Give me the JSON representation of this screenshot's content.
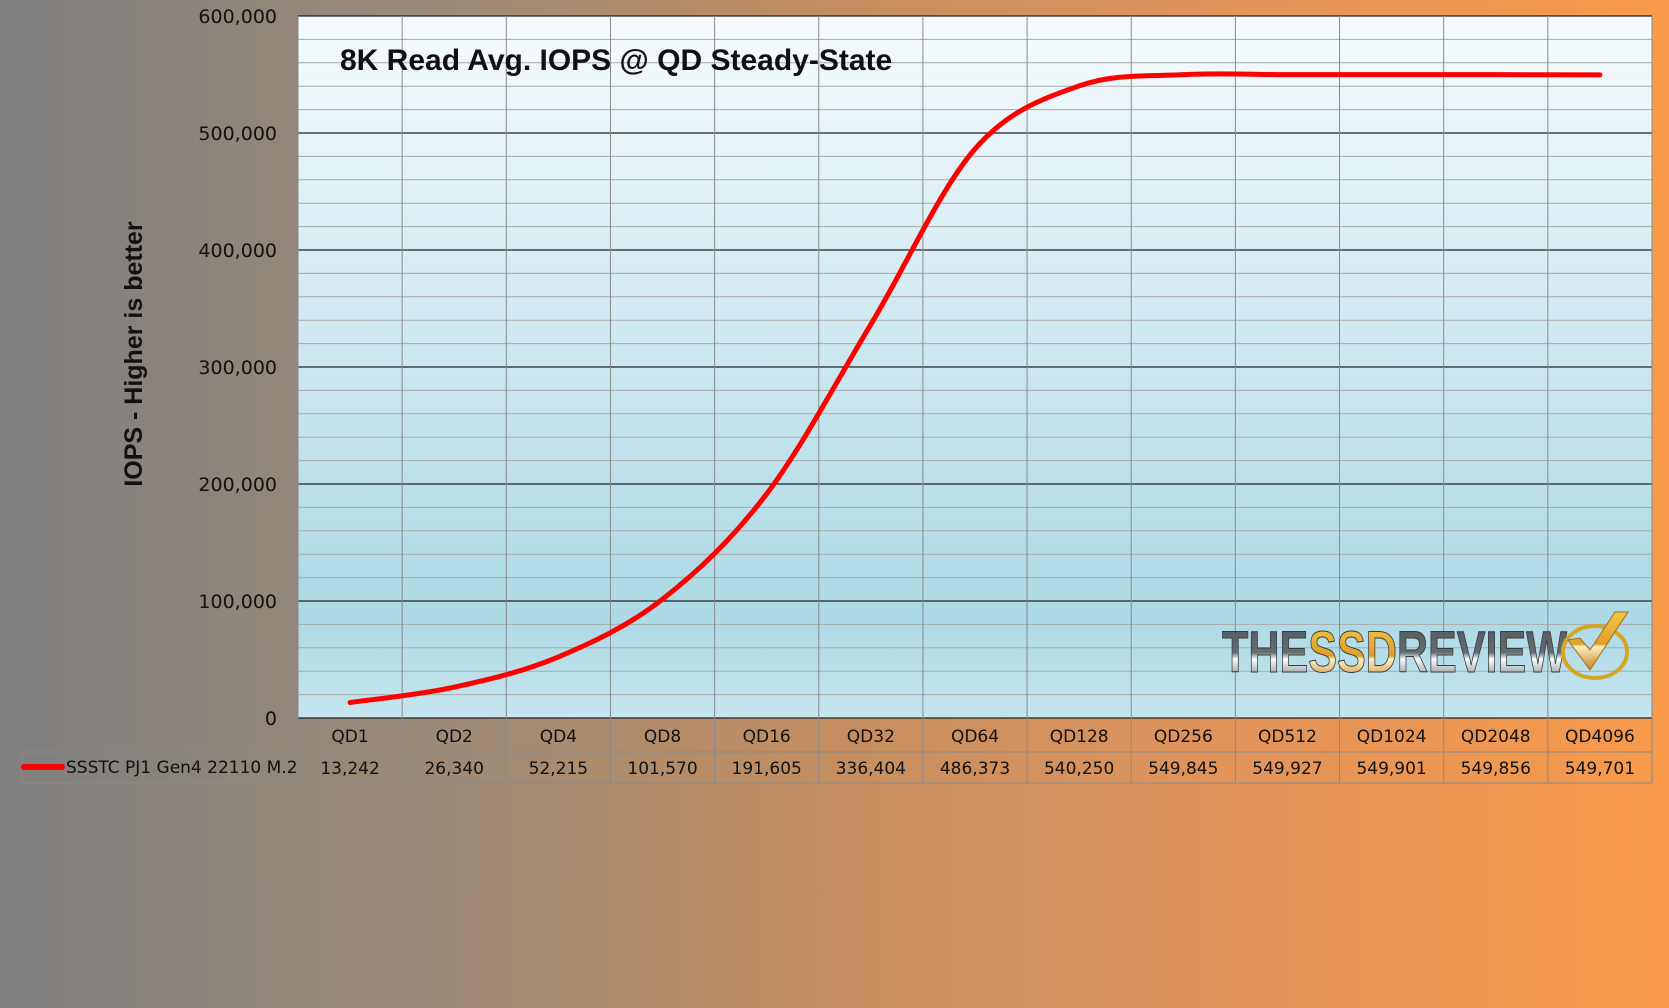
{
  "chart_data": {
    "type": "line",
    "title": "8K Read Avg. IOPS @ QD Steady-State",
    "ylabel": "IOPS - Higher is better",
    "xlabel": "",
    "ylim": [
      0,
      600000
    ],
    "yticks": [
      0,
      100000,
      200000,
      300000,
      400000,
      500000,
      600000
    ],
    "ytick_labels": [
      "0",
      "100,000",
      "200,000",
      "300,000",
      "400,000",
      "500,000",
      "600,000"
    ],
    "categories": [
      "QD1",
      "QD2",
      "QD4",
      "QD8",
      "QD16",
      "QD32",
      "QD64",
      "QD128",
      "QD256",
      "QD512",
      "QD1024",
      "QD2048",
      "QD4096"
    ],
    "series": [
      {
        "name": "SSSTC PJ1  Gen4 22110 M.2",
        "color": "#ff0000",
        "values": [
          13242,
          26340,
          52215,
          101570,
          191605,
          336404,
          486373,
          540250,
          549845,
          549927,
          549901,
          549856,
          549701
        ],
        "labels": [
          "13,242",
          "26,340",
          "52,215",
          "101,570",
          "191,605",
          "336,404",
          "486,373",
          "540,250",
          "549,845",
          "549,927",
          "549,901",
          "549,856",
          "549,701"
        ]
      }
    ],
    "grid": true,
    "legend": "data-table-bottom",
    "watermark": "THESSDREVIEW"
  }
}
